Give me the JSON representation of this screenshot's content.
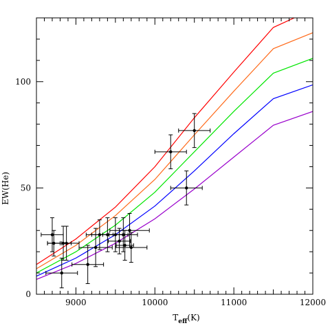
{
  "chart_data": {
    "type": "line",
    "title": "",
    "xlabel": "T",
    "xlabel_sub": "eff",
    "xlabel_unit": "(K)",
    "ylabel": "EW(He)",
    "xlim": [
      8500,
      12000
    ],
    "ylim": [
      0,
      130
    ],
    "grid": false,
    "legend": "none",
    "x_ticks": [
      9000,
      10000,
      11000,
      12000
    ],
    "x_tick_labels": [
      "9000",
      "10000",
      "11000",
      "12000"
    ],
    "y_ticks": [
      0,
      50,
      100
    ],
    "y_tick_labels": [
      "0",
      "50",
      "100"
    ],
    "series": [
      {
        "color": "#ff0000",
        "x": [
          8500,
          9000,
          9500,
          10000,
          10500,
          11000,
          11500,
          12000
        ],
        "y": [
          14.0,
          26.0,
          41.0,
          60.0,
          83.0,
          104.5,
          125.5,
          134.0
        ]
      },
      {
        "color": "#ff6a1a",
        "x": [
          8500,
          9000,
          9500,
          10000,
          10500,
          11000,
          11500,
          12000
        ],
        "y": [
          12.0,
          23.0,
          37.0,
          54.0,
          75.0,
          95.5,
          115.5,
          123.0
        ]
      },
      {
        "color": "#00e600",
        "x": [
          8500,
          9000,
          9500,
          10000,
          10500,
          11000,
          11500,
          12000
        ],
        "y": [
          10.0,
          20.0,
          32.5,
          48.0,
          67.0,
          86.0,
          104.0,
          111.0
        ]
      },
      {
        "color": "#0000ff",
        "x": [
          8500,
          9000,
          9500,
          10000,
          10500,
          11000,
          11500,
          12000
        ],
        "y": [
          8.5,
          17.0,
          28.0,
          41.5,
          58.0,
          75.5,
          92.0,
          98.5
        ]
      },
      {
        "color": "#9900cc",
        "x": [
          8500,
          9000,
          9500,
          10000,
          10500,
          11000,
          11500,
          12000
        ],
        "y": [
          7.0,
          14.5,
          24.0,
          35.5,
          49.5,
          64.5,
          79.5,
          86.0
        ]
      }
    ],
    "observations": [
      {
        "x": 8700,
        "y": 28,
        "xerr": 140,
        "yerr": 8
      },
      {
        "x": 8720,
        "y": 24,
        "xerr": 80,
        "yerr": 6
      },
      {
        "x": 8840,
        "y": 24,
        "xerr": 200,
        "yerr": 8
      },
      {
        "x": 8880,
        "y": 24,
        "xerr": 60,
        "yerr": 8
      },
      {
        "x": 8820,
        "y": 10,
        "xerr": 200,
        "yerr": 7
      },
      {
        "x": 9150,
        "y": 14,
        "xerr": 200,
        "yerr": 9
      },
      {
        "x": 9250,
        "y": 22,
        "xerr": 210,
        "yerr": 9
      },
      {
        "x": 9300,
        "y": 28,
        "xerr": 170,
        "yerr": 7
      },
      {
        "x": 9400,
        "y": 28,
        "xerr": 200,
        "yerr": 8
      },
      {
        "x": 9500,
        "y": 28,
        "xerr": 160,
        "yerr": 8
      },
      {
        "x": 9550,
        "y": 25,
        "xerr": 140,
        "yerr": 6
      },
      {
        "x": 9600,
        "y": 28,
        "xerr": 180,
        "yerr": 8
      },
      {
        "x": 9620,
        "y": 23,
        "xerr": 110,
        "yerr": 7
      },
      {
        "x": 9680,
        "y": 30,
        "xerr": 250,
        "yerr": 8
      },
      {
        "x": 9700,
        "y": 22,
        "xerr": 200,
        "yerr": 7
      },
      {
        "x": 10200,
        "y": 67,
        "xerr": 200,
        "yerr": 8
      },
      {
        "x": 10400,
        "y": 50,
        "xerr": 200,
        "yerr": 8
      },
      {
        "x": 10500,
        "y": 77,
        "xerr": 200,
        "yerr": 8
      }
    ]
  }
}
